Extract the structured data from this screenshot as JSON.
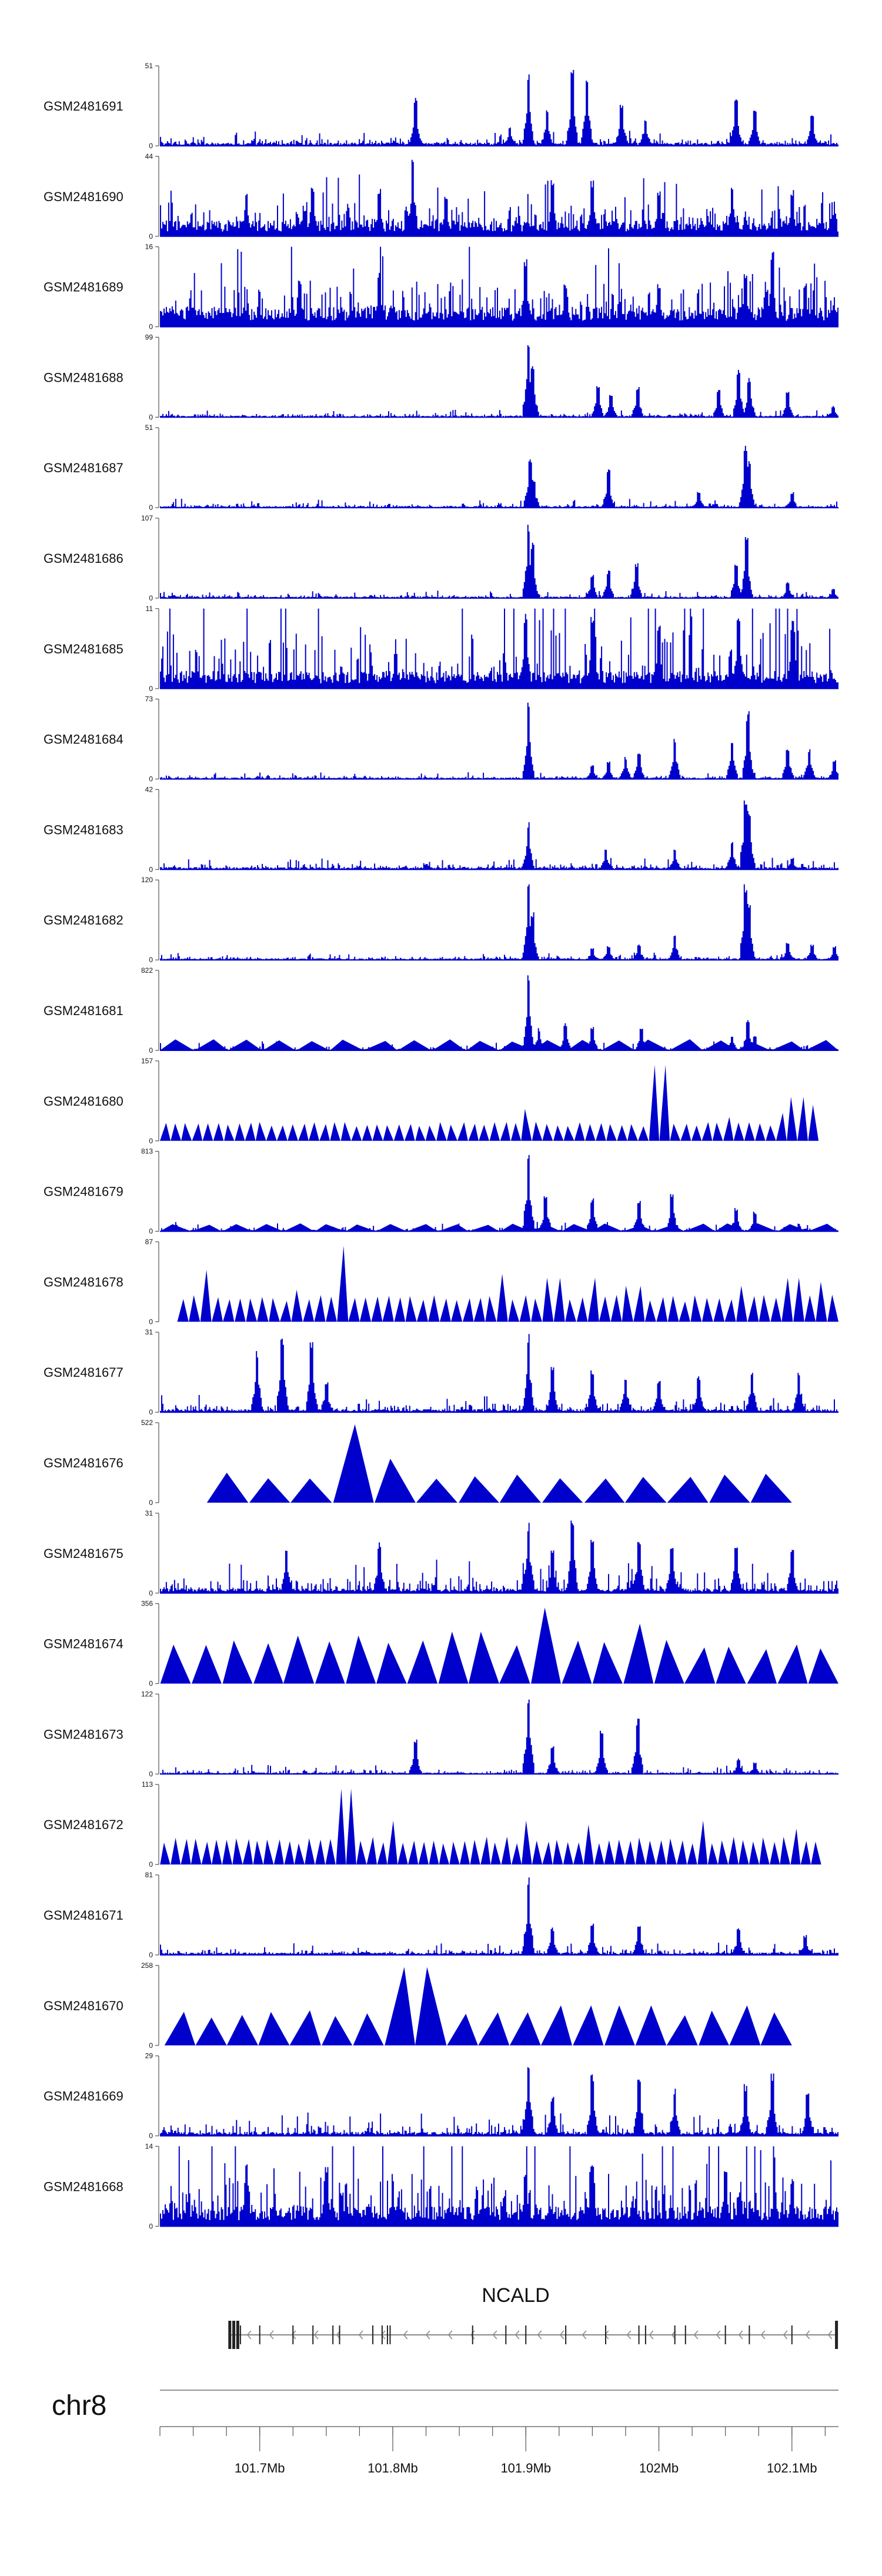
{
  "colors": {
    "signal": "#0000cc",
    "axis": "#555555",
    "text": "#111111",
    "gene": "#222222"
  },
  "chart_data": {
    "type": "area",
    "chromosome": "chr8",
    "xlim": [
      101.625,
      102.135
    ],
    "x_unit": "Mb",
    "ylim_min": 0,
    "tracks": [
      {
        "name": "GSM2481691",
        "ymax": "51",
        "style": "bar",
        "baseline": 0.04,
        "noise": 0.06,
        "peaks": [
          [
            101.817,
            0.62
          ],
          [
            101.888,
            0.25
          ],
          [
            101.902,
            0.9
          ],
          [
            101.916,
            0.45
          ],
          [
            101.935,
            0.95
          ],
          [
            101.946,
            0.92
          ],
          [
            101.972,
            0.55
          ],
          [
            101.99,
            0.35
          ],
          [
            102.058,
            0.6
          ],
          [
            102.072,
            0.45
          ],
          [
            102.115,
            0.42
          ]
        ]
      },
      {
        "name": "GSM2481690",
        "ymax": "44",
        "style": "bar",
        "baseline": 0.2,
        "noise": 0.25,
        "peaks": [
          [
            101.69,
            0.55
          ],
          [
            101.74,
            0.65
          ],
          [
            101.79,
            0.62
          ],
          [
            101.815,
            1.0
          ],
          [
            101.84,
            0.5
          ],
          [
            101.92,
            0.72
          ],
          [
            101.95,
            0.7
          ],
          [
            102.0,
            0.6
          ],
          [
            102.055,
            0.65
          ],
          [
            102.1,
            0.58
          ]
        ]
      },
      {
        "name": "GSM2481689",
        "ymax": "16",
        "style": "bar",
        "baseline": 0.25,
        "noise": 0.35,
        "peaks": [
          [
            101.73,
            0.6
          ],
          [
            101.79,
            0.7
          ],
          [
            101.9,
            0.85
          ],
          [
            101.93,
            0.55
          ],
          [
            102.0,
            0.55
          ],
          [
            102.065,
            0.7
          ],
          [
            102.085,
            0.95
          ],
          [
            102.11,
            0.55
          ]
        ]
      },
      {
        "name": "GSM2481688",
        "ymax": "99",
        "style": "bar",
        "baseline": 0.02,
        "noise": 0.03,
        "peaks": [
          [
            101.902,
            0.98
          ],
          [
            101.905,
            0.7
          ],
          [
            101.954,
            0.4
          ],
          [
            101.964,
            0.3
          ],
          [
            101.984,
            0.38
          ],
          [
            102.045,
            0.35
          ],
          [
            102.06,
            0.62
          ],
          [
            102.068,
            0.5
          ],
          [
            102.097,
            0.32
          ],
          [
            102.131,
            0.14
          ]
        ]
      },
      {
        "name": "GSM2481687",
        "ymax": "51",
        "style": "bar",
        "baseline": 0.02,
        "noise": 0.04,
        "peaks": [
          [
            101.903,
            0.62
          ],
          [
            101.906,
            0.35
          ],
          [
            101.962,
            0.48
          ],
          [
            102.03,
            0.2
          ],
          [
            102.065,
            0.78
          ],
          [
            102.068,
            0.6
          ],
          [
            102.1,
            0.2
          ]
        ]
      },
      {
        "name": "GSM2481686",
        "ymax": "107",
        "style": "bar",
        "baseline": 0.02,
        "noise": 0.03,
        "peaks": [
          [
            101.902,
            0.95
          ],
          [
            101.905,
            0.7
          ],
          [
            101.95,
            0.3
          ],
          [
            101.962,
            0.35
          ],
          [
            101.983,
            0.45
          ],
          [
            102.058,
            0.45
          ],
          [
            102.066,
            0.8
          ],
          [
            102.097,
            0.2
          ],
          [
            102.131,
            0.12
          ]
        ]
      },
      {
        "name": "GSM2481685",
        "ymax": "11",
        "style": "bar",
        "baseline": 0.22,
        "noise": 0.55,
        "peaks": [
          [
            101.9,
            0.95
          ],
          [
            101.95,
            0.9
          ],
          [
            102.0,
            0.85
          ],
          [
            102.06,
            0.95
          ],
          [
            102.1,
            0.85
          ]
        ]
      },
      {
        "name": "GSM2481684",
        "ymax": "73",
        "style": "bar",
        "baseline": 0.02,
        "noise": 0.03,
        "peaks": [
          [
            101.902,
            0.98
          ],
          [
            101.95,
            0.18
          ],
          [
            101.962,
            0.22
          ],
          [
            101.975,
            0.28
          ],
          [
            101.985,
            0.35
          ],
          [
            102.012,
            0.52
          ],
          [
            102.055,
            0.5
          ],
          [
            102.067,
            0.85
          ],
          [
            102.097,
            0.4
          ],
          [
            102.113,
            0.38
          ],
          [
            102.132,
            0.25
          ]
        ]
      },
      {
        "name": "GSM2481683",
        "ymax": "42",
        "style": "bar",
        "baseline": 0.03,
        "noise": 0.05,
        "peaks": [
          [
            101.902,
            0.6
          ],
          [
            101.96,
            0.25
          ],
          [
            102.012,
            0.25
          ],
          [
            102.055,
            0.35
          ],
          [
            102.065,
            0.95
          ],
          [
            102.068,
            0.75
          ],
          [
            102.1,
            0.15
          ]
        ]
      },
      {
        "name": "GSM2481682",
        "ymax": "120",
        "style": "bar",
        "baseline": 0.02,
        "noise": 0.03,
        "peaks": [
          [
            101.902,
            0.97
          ],
          [
            101.905,
            0.6
          ],
          [
            101.95,
            0.15
          ],
          [
            101.962,
            0.18
          ],
          [
            101.985,
            0.2
          ],
          [
            102.012,
            0.32
          ],
          [
            102.065,
            0.95
          ],
          [
            102.068,
            0.7
          ],
          [
            102.097,
            0.22
          ],
          [
            102.115,
            0.2
          ],
          [
            102.132,
            0.18
          ]
        ]
      },
      {
        "name": "GSM2481681",
        "ymax": "822",
        "style": "mixed",
        "tri_count": 20,
        "tri_height": 0.14,
        "seed_tri": 3,
        "baseline": 0.02,
        "noise": 0.04,
        "peaks": [
          [
            101.902,
            0.95
          ],
          [
            101.91,
            0.28
          ],
          [
            101.93,
            0.35
          ],
          [
            101.95,
            0.3
          ],
          [
            101.987,
            0.3
          ],
          [
            102.055,
            0.2
          ],
          [
            102.067,
            0.38
          ],
          [
            102.072,
            0.2
          ]
        ]
      },
      {
        "name": "GSM2481680",
        "ymax": "157",
        "style": "tri",
        "tri_count": 62,
        "tri_height": 0.24,
        "seed_tri": 7,
        "tri_span": [
          101.625,
          102.12
        ],
        "tall_tris": [
          [
            101.9,
            0.4
          ],
          [
            102.0,
            0.95
          ],
          [
            102.052,
            0.3
          ],
          [
            102.09,
            0.35
          ],
          [
            102.105,
            0.55
          ],
          [
            102.112,
            0.45
          ]
        ]
      },
      {
        "name": "GSM2481679",
        "ymax": "813",
        "style": "mixed",
        "tri_count": 22,
        "tri_height": 0.1,
        "seed_tri": 11,
        "baseline": 0.02,
        "noise": 0.04,
        "peaks": [
          [
            101.902,
            0.98
          ],
          [
            101.915,
            0.45
          ],
          [
            101.95,
            0.42
          ],
          [
            101.985,
            0.4
          ],
          [
            102.01,
            0.5
          ],
          [
            102.058,
            0.3
          ],
          [
            102.072,
            0.25
          ]
        ]
      },
      {
        "name": "GSM2481678",
        "ymax": "87",
        "style": "tri",
        "tri_count": 58,
        "tri_height": 0.34,
        "seed_tri": 13,
        "tri_span": [
          101.638,
          102.135
        ],
        "tall_tris": [
          [
            101.66,
            0.65
          ],
          [
            101.763,
            0.95
          ],
          [
            101.73,
            0.4
          ],
          [
            101.88,
            0.6
          ],
          [
            101.92,
            0.55
          ],
          [
            101.95,
            0.55
          ],
          [
            101.98,
            0.45
          ],
          [
            102.06,
            0.45
          ],
          [
            102.1,
            0.55
          ],
          [
            102.12,
            0.5
          ]
        ]
      },
      {
        "name": "GSM2481677",
        "ymax": "31",
        "style": "bar",
        "baseline": 0.04,
        "noise": 0.08,
        "peaks": [
          [
            101.698,
            0.8
          ],
          [
            101.717,
            0.95
          ],
          [
            101.739,
            0.88
          ],
          [
            101.75,
            0.4
          ],
          [
            101.902,
            1.0
          ],
          [
            101.92,
            0.6
          ],
          [
            101.95,
            0.55
          ],
          [
            101.975,
            0.45
          ],
          [
            102.0,
            0.42
          ],
          [
            102.03,
            0.45
          ],
          [
            102.07,
            0.55
          ],
          [
            102.105,
            0.5
          ]
        ]
      },
      {
        "name": "GSM2481676",
        "ymax": "522",
        "style": "tri",
        "tri_count": 14,
        "tri_height": 0.38,
        "seed_tri": 17,
        "tri_span": [
          101.66,
          102.1
        ],
        "tall_tris": [
          [
            101.775,
            0.98
          ],
          [
            101.78,
            0.55
          ],
          [
            101.795,
            0.3
          ],
          [
            101.85,
            0.3
          ],
          [
            101.865,
            0.3
          ],
          [
            102.05,
            0.35
          ],
          [
            102.06,
            0.32
          ]
        ]
      },
      {
        "name": "GSM2481675",
        "ymax": "31",
        "style": "bar",
        "baseline": 0.06,
        "noise": 0.14,
        "peaks": [
          [
            101.72,
            0.6
          ],
          [
            101.79,
            0.65
          ],
          [
            101.902,
            0.9
          ],
          [
            101.92,
            0.55
          ],
          [
            101.935,
            0.95
          ],
          [
            101.95,
            0.7
          ],
          [
            101.985,
            0.7
          ],
          [
            102.01,
            0.6
          ],
          [
            102.058,
            0.65
          ],
          [
            102.1,
            0.55
          ]
        ]
      },
      {
        "name": "GSM2481674",
        "ymax": "356",
        "style": "tri",
        "tri_count": 22,
        "tri_height": 0.55,
        "seed_tri": 19,
        "tri_span": [
          101.625,
          102.135
        ],
        "tall_tris": [
          [
            101.737,
            0.6
          ],
          [
            101.775,
            0.6
          ],
          [
            101.859,
            0.65
          ],
          [
            101.911,
            0.95
          ],
          [
            101.978,
            0.75
          ]
        ]
      },
      {
        "name": "GSM2481673",
        "ymax": "122",
        "style": "bar",
        "baseline": 0.02,
        "noise": 0.04,
        "peaks": [
          [
            101.817,
            0.45
          ],
          [
            101.902,
            0.95
          ],
          [
            101.92,
            0.35
          ],
          [
            101.957,
            0.55
          ],
          [
            101.984,
            0.7
          ],
          [
            102.06,
            0.2
          ],
          [
            102.072,
            0.15
          ]
        ]
      },
      {
        "name": "GSM2481672",
        "ymax": "113",
        "style": "tri",
        "tri_count": 64,
        "tri_height": 0.35,
        "seed_tri": 23,
        "tri_span": [
          101.625,
          102.122
        ],
        "tall_tris": [
          [
            101.765,
            0.95
          ],
          [
            101.8,
            0.55
          ],
          [
            101.9,
            0.55
          ],
          [
            101.95,
            0.5
          ],
          [
            102.03,
            0.55
          ],
          [
            102.1,
            0.45
          ]
        ]
      },
      {
        "name": "GSM2481671",
        "ymax": "81",
        "style": "bar",
        "baseline": 0.03,
        "noise": 0.05,
        "peaks": [
          [
            101.902,
            0.98
          ],
          [
            101.92,
            0.35
          ],
          [
            101.95,
            0.4
          ],
          [
            101.985,
            0.4
          ],
          [
            102.06,
            0.35
          ],
          [
            102.11,
            0.25
          ]
        ]
      },
      {
        "name": "GSM2481670",
        "ymax": "258",
        "style": "tri",
        "tri_count": 20,
        "tri_height": 0.45,
        "seed_tri": 29,
        "tri_span": [
          101.628,
          102.1
        ],
        "tall_tris": [
          [
            101.82,
            0.98
          ],
          [
            101.935,
            0.5
          ],
          [
            101.98,
            0.5
          ],
          [
            102.06,
            0.5
          ]
        ]
      },
      {
        "name": "GSM2481669",
        "ymax": "29",
        "style": "bar",
        "baseline": 0.05,
        "noise": 0.1,
        "peaks": [
          [
            101.902,
            0.95
          ],
          [
            101.92,
            0.5
          ],
          [
            101.95,
            0.8
          ],
          [
            101.985,
            0.72
          ],
          [
            102.012,
            0.6
          ],
          [
            102.065,
            0.65
          ],
          [
            102.085,
            0.8
          ],
          [
            102.112,
            0.55
          ]
        ]
      },
      {
        "name": "GSM2481668",
        "ymax": "14",
        "style": "bar",
        "baseline": 0.25,
        "noise": 0.45,
        "peaks": [
          [
            101.69,
            0.8
          ],
          [
            101.75,
            0.75
          ],
          [
            101.8,
            0.6
          ],
          [
            101.9,
            0.7
          ],
          [
            101.95,
            0.8
          ],
          [
            102.05,
            0.75
          ],
          [
            102.1,
            0.6
          ]
        ]
      }
    ],
    "gene": {
      "name": "NCALD",
      "start_mb": 101.6775,
      "end_mb": 102.1335,
      "strand": "-",
      "exons_mb": [
        101.6775,
        101.6805,
        101.6835,
        101.6855,
        101.7,
        101.725,
        101.74,
        101.755,
        101.76,
        101.785,
        101.792,
        101.796,
        101.798,
        101.86,
        101.885,
        101.9,
        101.93,
        101.96,
        101.985,
        101.99,
        102.012,
        102.02,
        102.05,
        102.068,
        102.1,
        102.1335
      ]
    },
    "axis": {
      "ticks_mb": [
        101.7,
        101.8,
        101.9,
        102.0,
        102.1
      ],
      "tick_labels": [
        "101.7Mb",
        "101.8Mb",
        "101.9Mb",
        "102Mb",
        "102.1Mb"
      ],
      "minor_step_mb": 0.025
    }
  },
  "chrom_label": "chr8",
  "zero_label": "0"
}
